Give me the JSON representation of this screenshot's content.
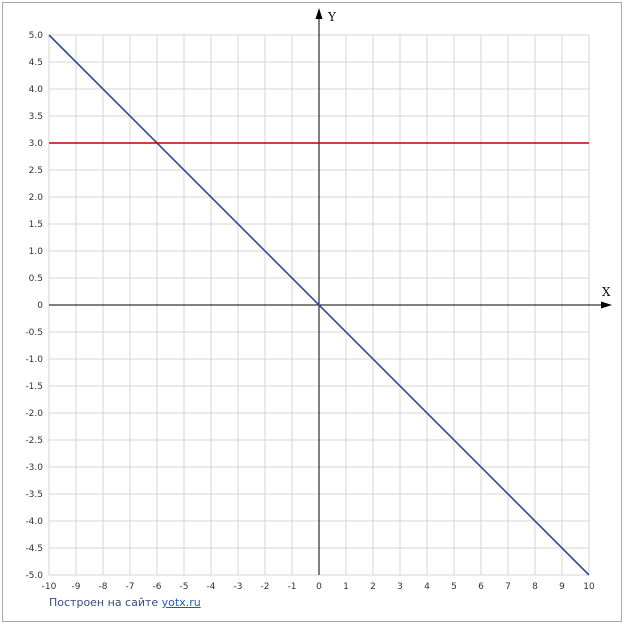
{
  "chart_data": {
    "type": "line",
    "title": "",
    "xlabel": "X",
    "ylabel": "Y",
    "xlim": [
      -10,
      10
    ],
    "ylim": [
      -5,
      5
    ],
    "grid": true,
    "x_ticks": [
      -10,
      -9,
      -8,
      -7,
      -6,
      -5,
      -4,
      -3,
      -2,
      -1,
      0,
      1,
      2,
      3,
      4,
      5,
      6,
      7,
      8,
      9,
      10
    ],
    "x_tick_labels": [
      "-10",
      "-9",
      "-8",
      "-7",
      "-6",
      "-5",
      "-4",
      "-3",
      "-2",
      "-1",
      "0",
      "1",
      "2",
      "3",
      "4",
      "5",
      "6",
      "7",
      "8",
      "9",
      "10"
    ],
    "y_ticks": [
      5,
      4.5,
      4,
      3.5,
      3,
      2.5,
      2,
      1.5,
      1,
      0.5,
      0,
      -0.5,
      -1,
      -1.5,
      -2,
      -2.5,
      -3,
      -3.5,
      -4,
      -4.5,
      -5
    ],
    "y_tick_labels": [
      "5.0",
      "4.5",
      "4.0",
      "3.5",
      "3.0",
      "2.5",
      "2.0",
      "1.5",
      "1.0",
      "0.5",
      "0",
      "-0.5",
      "-1.0",
      "-1.5",
      "-2.0",
      "-2.5",
      "-3.0",
      "-3.5",
      "-4.0",
      "-4.5",
      "-5.0"
    ],
    "series": [
      {
        "color": "#2b4c9b",
        "x": [
          -10,
          10
        ],
        "y": [
          5,
          -5
        ]
      },
      {
        "color": "#c00000",
        "x": [
          -10,
          10
        ],
        "y": [
          3,
          3
        ]
      }
    ]
  },
  "credit": {
    "text": "Построен на сайте ",
    "link": "yotx.ru"
  }
}
